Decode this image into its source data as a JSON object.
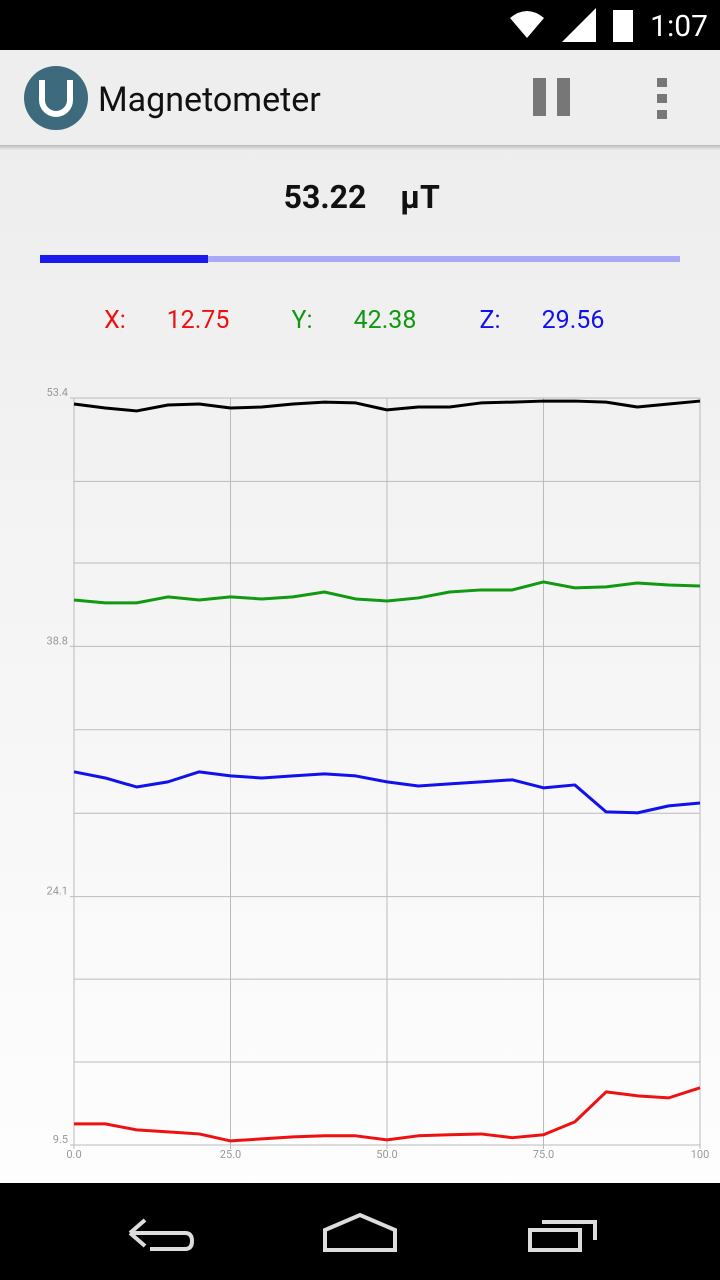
{
  "status_bar": {
    "time": "1:07"
  },
  "app_bar": {
    "title": "Magnetometer"
  },
  "magnitude": {
    "value": 53.22,
    "unit": "µT"
  },
  "readings": [
    {
      "label": "X:",
      "value": 12.75,
      "color": "#ee1111"
    },
    {
      "label": "Y:",
      "value": 42.38,
      "color": "#119911"
    },
    {
      "label": "Z:",
      "value": 29.56,
      "color": "#1111ee"
    }
  ],
  "chart_data": {
    "type": "line",
    "x": [
      0,
      5,
      10,
      15,
      20,
      25,
      30,
      35,
      40,
      45,
      50,
      55,
      60,
      65,
      70,
      75,
      80,
      85,
      90,
      95,
      100
    ],
    "xlim": [
      0,
      100
    ],
    "xticks": [
      {
        "value": 0,
        "label": "0.0"
      },
      {
        "value": 25,
        "label": "25.0"
      },
      {
        "value": 50,
        "label": "50.0"
      },
      {
        "value": 75,
        "label": "75.0"
      },
      100
    ],
    "ylim": [
      9.5,
      53.4
    ],
    "yticks": [
      9.5,
      24.1,
      38.8,
      53.4
    ],
    "minor_yticks": [
      14.38,
      19.25,
      29.0,
      33.9,
      43.7,
      48.5
    ],
    "grid": true,
    "series": [
      {
        "color": "#000000",
        "values": [
          53.05,
          52.81,
          52.64,
          52.99,
          53.05,
          52.81,
          52.87,
          53.05,
          53.16,
          53.11,
          52.7,
          52.87,
          52.87,
          53.11,
          53.16,
          53.22,
          53.22,
          53.16,
          52.87,
          53.05,
          53.22
        ]
      },
      {
        "color": "#119911",
        "values": [
          41.53,
          41.36,
          41.36,
          41.71,
          41.53,
          41.71,
          41.59,
          41.71,
          42.0,
          41.59,
          41.47,
          41.65,
          42.0,
          42.12,
          42.12,
          42.59,
          42.24,
          42.3,
          42.53,
          42.41,
          42.35
        ]
      },
      {
        "color": "#1111ee",
        "values": [
          31.43,
          31.07,
          30.54,
          30.84,
          31.43,
          31.19,
          31.07,
          31.19,
          31.31,
          31.19,
          30.84,
          30.6,
          30.72,
          30.84,
          30.96,
          30.49,
          30.66,
          29.08,
          29.02,
          29.43,
          29.6
        ]
      },
      {
        "color": "#ee1111",
        "values": [
          10.74,
          10.74,
          10.39,
          10.27,
          10.15,
          9.74,
          9.86,
          9.98,
          10.04,
          10.04,
          9.8,
          10.04,
          10.1,
          10.15,
          9.93,
          10.1,
          10.86,
          12.62,
          12.39,
          12.27,
          12.86
        ]
      }
    ]
  }
}
